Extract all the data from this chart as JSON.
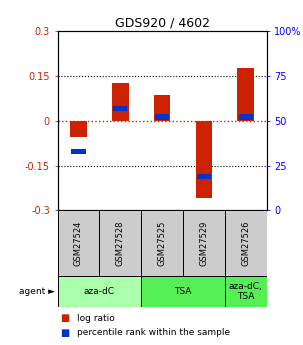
{
  "title": "GDS920 / 4602",
  "samples": [
    "GSM27524",
    "GSM27528",
    "GSM27525",
    "GSM27529",
    "GSM27526"
  ],
  "log_ratios": [
    -0.055,
    0.125,
    0.085,
    -0.26,
    0.175
  ],
  "percentile_ranks": [
    33,
    57,
    52,
    19,
    52
  ],
  "agents": [
    {
      "label": "aza-dC",
      "start": 0,
      "end": 2,
      "color": "#aaffaa"
    },
    {
      "label": "TSA",
      "start": 2,
      "end": 4,
      "color": "#55ee55"
    },
    {
      "label": "aza-dC,\nTSA",
      "start": 4,
      "end": 5,
      "color": "#55ee55"
    }
  ],
  "ylim": [
    -0.3,
    0.3
  ],
  "y2lim": [
    0,
    100
  ],
  "yticks": [
    -0.3,
    -0.15,
    0.0,
    0.15,
    0.3
  ],
  "y2ticks": [
    0,
    25,
    50,
    75,
    100
  ],
  "ytick_labels": [
    "-0.3",
    "-0.15",
    "0",
    "0.15",
    "0.3"
  ],
  "y2tick_labels": [
    "0",
    "25",
    "50",
    "75",
    "100%"
  ],
  "hlines_dotted": [
    -0.15,
    0.15
  ],
  "zero_line": 0.0,
  "bar_width": 0.4,
  "red_color": "#cc2200",
  "blue_color": "#0033cc",
  "sample_bg": "#cccccc",
  "agent1_color": "#aaffaa",
  "agent2_color": "#55ee55"
}
